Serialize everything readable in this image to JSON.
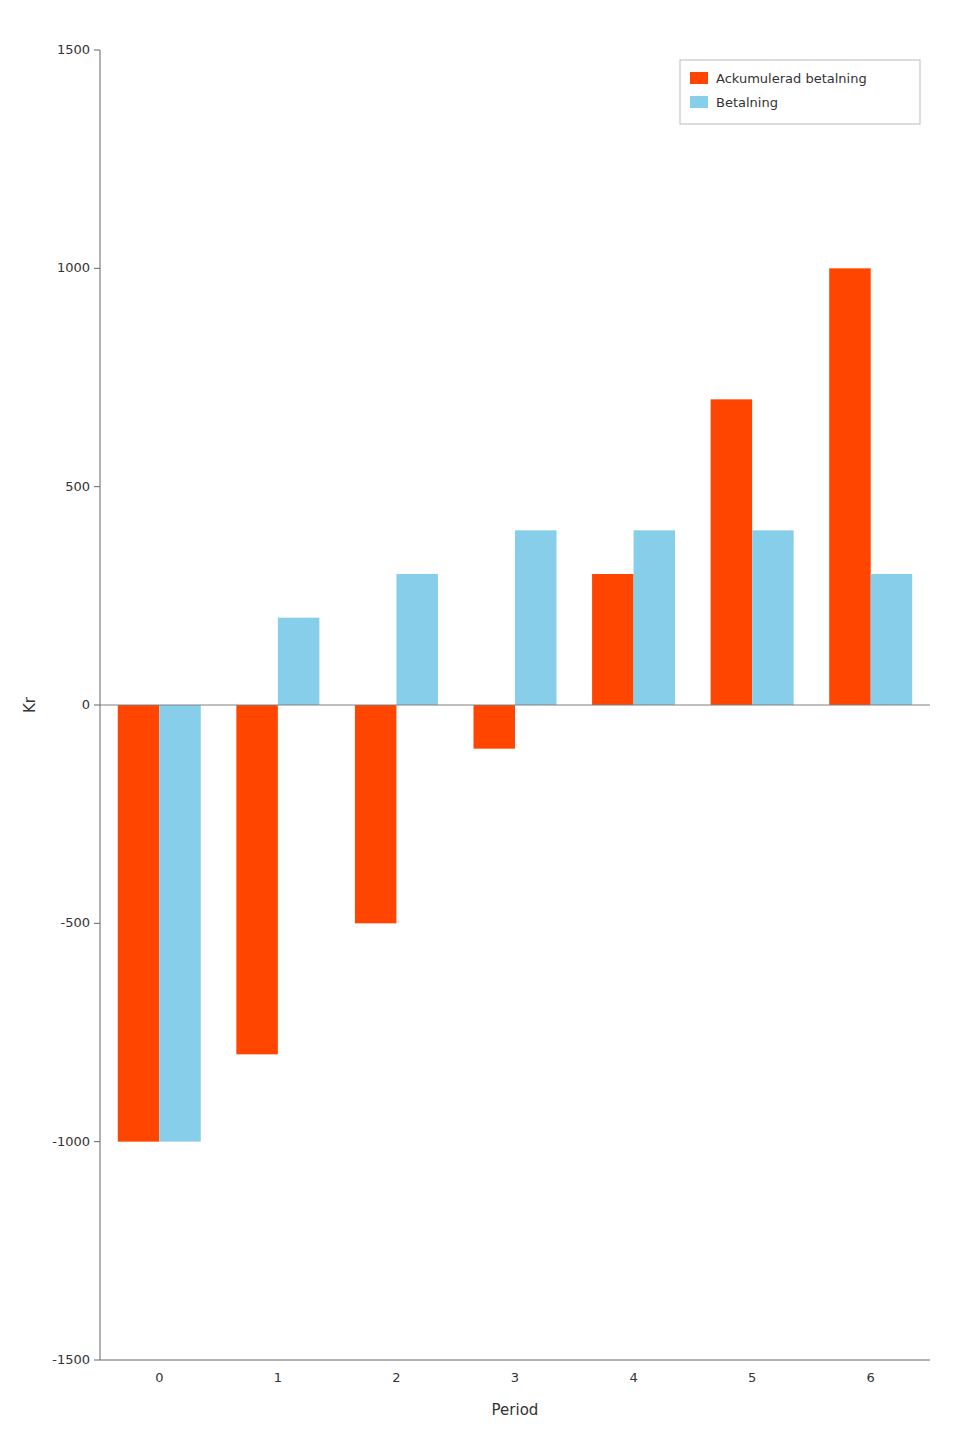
{
  "chart_data": {
    "type": "bar",
    "categories": [
      "0",
      "1",
      "2",
      "3",
      "4",
      "5",
      "6"
    ],
    "series": [
      {
        "name": "Ackumulerad betalning",
        "color": "#FF4500",
        "values": [
          -1000,
          -800,
          -500,
          -100,
          300,
          700,
          1000
        ]
      },
      {
        "name": "Betalning",
        "color": "#87CEEB",
        "values": [
          -1000,
          200,
          300,
          400,
          400,
          400,
          300
        ]
      }
    ],
    "x_label": "Period",
    "y_label": "Kr",
    "ylim": [
      -1500,
      1500
    ],
    "yticks": [
      -1500,
      -1000,
      -500,
      0,
      500,
      1000,
      1500
    ],
    "legend": "upper right",
    "grid": false
  }
}
